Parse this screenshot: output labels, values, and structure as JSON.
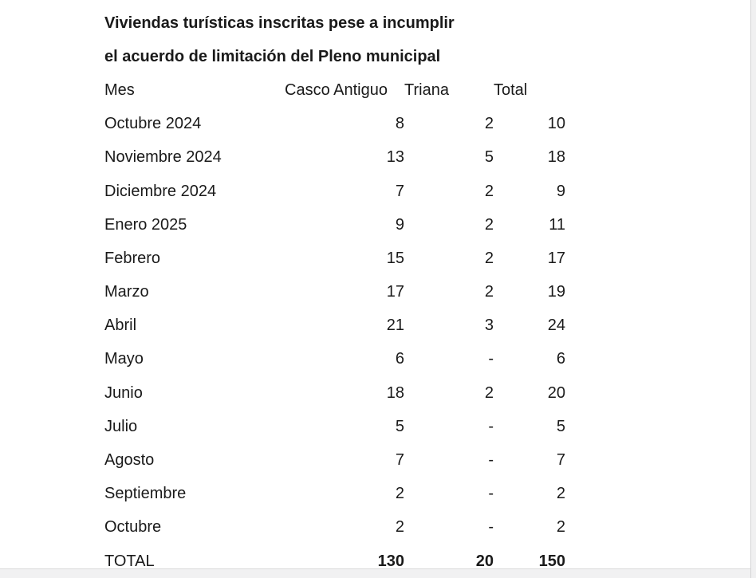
{
  "colors": {
    "background": "#ffffff",
    "text": "#1a1a1a",
    "scrollbar_track": "#f0f0f1",
    "scrollbar_border": "#d4d4d6"
  },
  "document": {
    "title_lines": [
      "Viviendas turísticas inscritas pese a incumplir",
      "el acuerdo de limitación del Pleno municipal"
    ],
    "table": {
      "headers": [
        "Mes",
        "Casco Antiguo",
        "Triana",
        "Total"
      ],
      "rows": [
        [
          "Octubre 2024",
          "8",
          "2",
          "10"
        ],
        [
          "Noviembre 2024",
          "13",
          "5",
          "18"
        ],
        [
          "Diciembre 2024",
          "7",
          "2",
          "9"
        ],
        [
          "Enero 2025",
          "9",
          "2",
          "11"
        ],
        [
          "Febrero",
          "15",
          "2",
          "17"
        ],
        [
          "Marzo",
          "17",
          "2",
          "19"
        ],
        [
          "Abril",
          "21",
          "3",
          "24"
        ],
        [
          "Mayo",
          "6",
          "-",
          "6"
        ],
        [
          "Junio",
          "18",
          "2",
          "20"
        ],
        [
          "Julio",
          "5",
          "-",
          "5"
        ],
        [
          "Agosto",
          "7",
          "-",
          "7"
        ],
        [
          "Septiembre",
          "2",
          "-",
          "2"
        ],
        [
          "Octubre",
          "2",
          "-",
          "2"
        ]
      ],
      "total_row": [
        "TOTAL",
        "130",
        "20",
        "150"
      ]
    }
  }
}
